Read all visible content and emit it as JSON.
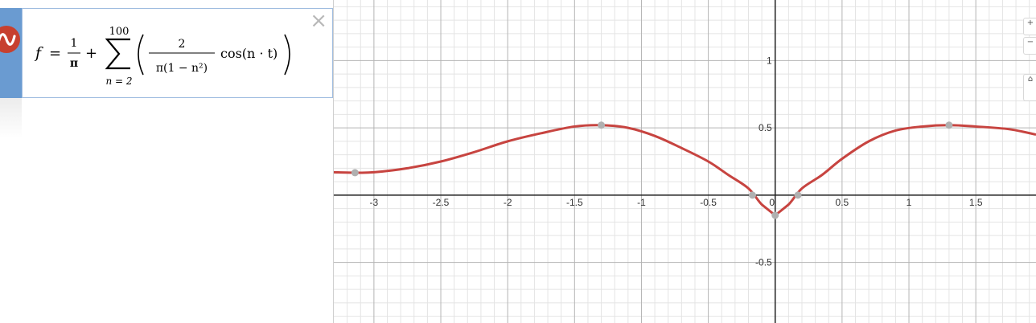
{
  "expression": {
    "lhs": "f",
    "eq": "=",
    "frac_num": "1",
    "frac_den": "π",
    "plus": "+",
    "sum_upper": "100",
    "sum_lower": "n = 2",
    "inner_num": "2",
    "inner_den": "π(1 − n²)",
    "cos_text": "cos(n · t)",
    "close_label": "×"
  },
  "colors": {
    "curve": "#c74440",
    "point": "#b0b0b0",
    "tab": "#6a9bd1"
  },
  "icons": {
    "expression_icon": "wave-icon",
    "close": "close-icon"
  },
  "right_buttons": [
    "+",
    "−",
    "⌂"
  ],
  "chart_data": {
    "type": "line",
    "xlim": [
      -3.3,
      1.95
    ],
    "ylim": [
      -0.95,
      1.45
    ],
    "grid": true,
    "x_ticks": [
      "-3",
      "-2.5",
      "-2",
      "-1.5",
      "-1",
      "-0.5",
      "0",
      "0.5",
      "1",
      "1.5"
    ],
    "y_ticks": [
      "1",
      "0.5",
      "-0.5"
    ],
    "series": [
      {
        "x": [
          -3.3,
          -3.1416,
          -3.0,
          -2.75,
          -2.5,
          -2.25,
          -2.0,
          -1.75,
          -1.5,
          -1.3,
          -1.1,
          -0.9,
          -0.7,
          -0.5,
          -0.35,
          -0.2,
          -0.1,
          0.0,
          0.1,
          0.2,
          0.35,
          0.5,
          0.7,
          0.9,
          1.1,
          1.3,
          1.5,
          1.75,
          1.95
        ],
        "y": [
          0.17,
          0.167,
          0.17,
          0.2,
          0.25,
          0.32,
          0.4,
          0.46,
          0.51,
          0.52,
          0.5,
          0.44,
          0.35,
          0.25,
          0.15,
          0.05,
          -0.07,
          -0.15,
          -0.07,
          0.05,
          0.15,
          0.27,
          0.4,
          0.48,
          0.51,
          0.52,
          0.51,
          0.49,
          0.45
        ]
      }
    ],
    "points": [
      {
        "x": -3.1416,
        "y": 0.167
      },
      {
        "x": -1.3,
        "y": 0.52
      },
      {
        "x": -0.17,
        "y": 0.0
      },
      {
        "x": 0.0,
        "y": -0.15
      },
      {
        "x": 0.17,
        "y": 0.0
      },
      {
        "x": 1.3,
        "y": 0.52
      }
    ]
  }
}
